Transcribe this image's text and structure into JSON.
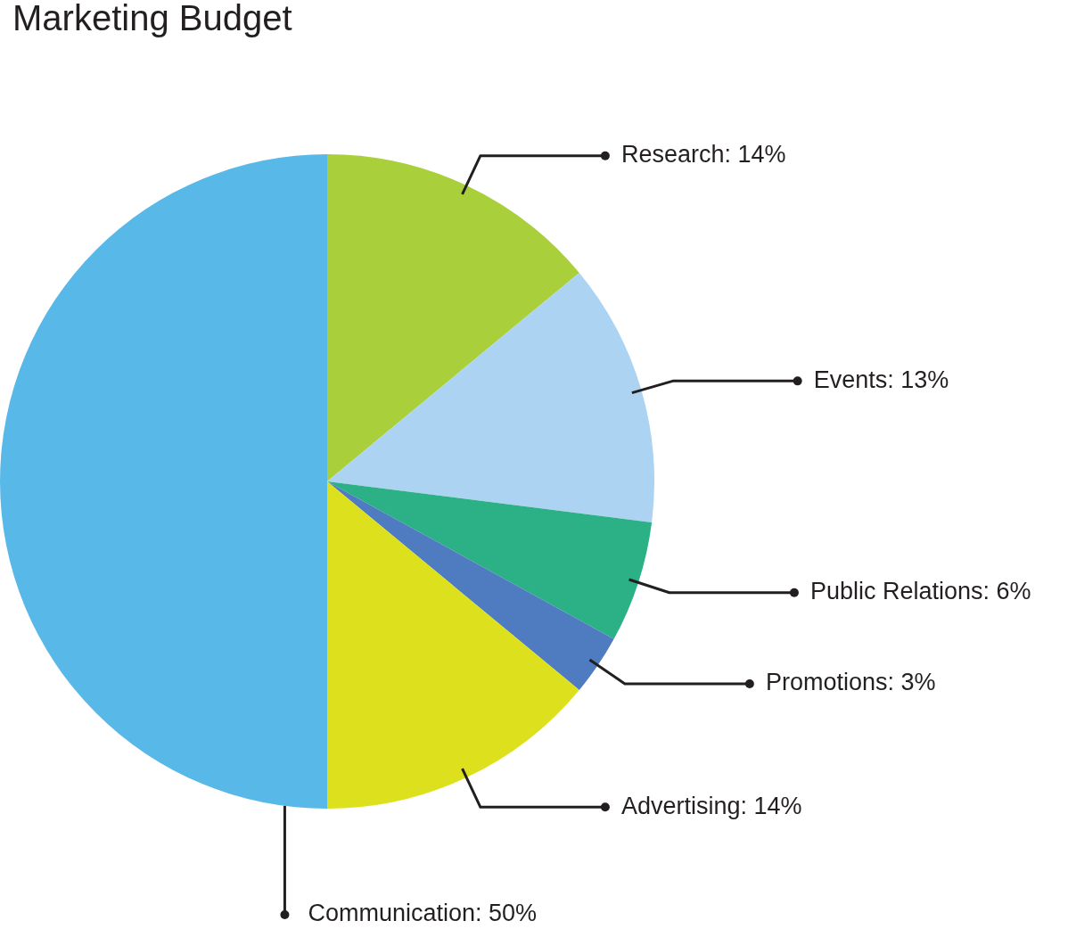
{
  "chart_data": {
    "type": "pie",
    "title": "Marketing Budget",
    "categories": [
      "Research",
      "Events",
      "Public Relations",
      "Promotions",
      "Advertising",
      "Communication"
    ],
    "values": [
      14,
      13,
      6,
      3,
      14,
      50
    ],
    "colors": [
      "#a9d03a",
      "#acd3f1",
      "#2bb185",
      "#4f7bc0",
      "#dde11d",
      "#58b8e8"
    ],
    "value_labels": [
      "14%",
      "13%",
      "6%",
      "3%",
      "14%",
      "50%"
    ]
  }
}
